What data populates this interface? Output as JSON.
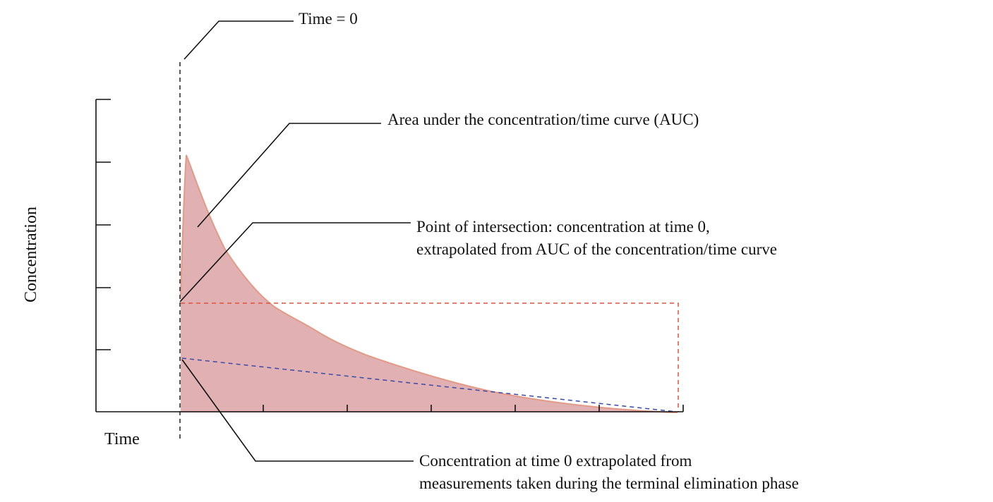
{
  "axes": {
    "y_label": "Concentration",
    "x_label": "Time"
  },
  "annotations": {
    "time_zero": "Time = 0",
    "auc": "Area under the concentration/time curve (AUC)",
    "intersection_line1": "Point of intersection: concentration at time 0,",
    "intersection_line2": "extrapolated from AUC of the concentration/time curve",
    "extrapolated_line1": "Concentration at time 0 extrapolated from",
    "extrapolated_line2": "measurements taken during the terminal elimination phase"
  },
  "colors": {
    "auc_fill": "#e0b0b2",
    "auc_stroke": "#e39a86",
    "rectangle_dash": "#e0533d",
    "terminal_line_dash": "#3a4aa8",
    "ink": "#111111"
  }
}
